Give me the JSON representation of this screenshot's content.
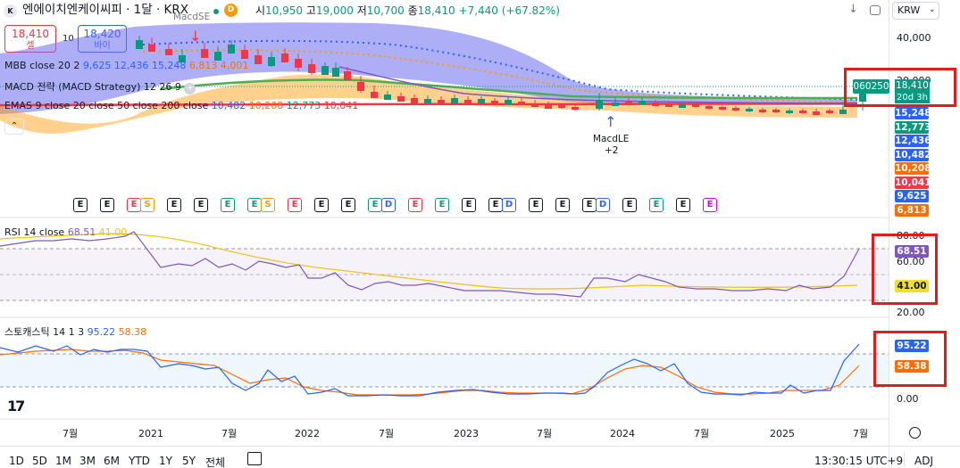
{
  "header": {
    "symbol_icon": "kr-flag-icon",
    "title": "엔에이치엔케이씨피 · 1달 · KRX",
    "open_label": "시",
    "open": "10,950",
    "high_label": "고",
    "high": "19,000",
    "low_label": "저",
    "low": "10,700",
    "close_label": "종",
    "close": "18,410",
    "change": "+7,440 (+67.82%)",
    "currency": "KRW"
  },
  "trade": {
    "sell_price": "18,410",
    "sell_label": "셀",
    "spread": "10",
    "buy_price": "18,420",
    "buy_label": "바이"
  },
  "indicators": {
    "mbb": {
      "label": "MBB close 20 2",
      "v1": "9,625",
      "v2": "12,436",
      "v3": "15,248",
      "v4": "6,813",
      "v5": "4,001"
    },
    "macd": {
      "label": "MACD 전략 (MACD Strategy) 12 26 9"
    },
    "emas": {
      "label": "EMAS 9 close 20 close 50 close 200 close",
      "v1": "10,482",
      "v2": "10,208",
      "v3": "12,773",
      "v4": "10,041"
    },
    "rsi": {
      "label": "RSI 14 close",
      "v1": "68.51",
      "v2": "41.00"
    },
    "stoch": {
      "label": "스토캐스틱 14 1 3",
      "v1": "95.22",
      "v2": "58.38"
    }
  },
  "annotations": {
    "macdshort": "MacdSE",
    "macdle": "MacdLE",
    "macdle_qty": "+2"
  },
  "price_axis": {
    "ticks": [
      "40,000",
      "20,000"
    ],
    "last_symbol": "060250",
    "last_price": "18,410",
    "countdown": "20d 3h",
    "tags": [
      {
        "value": "15,248",
        "color": "#2962ff"
      },
      {
        "value": "12,773",
        "color": "#089981"
      },
      {
        "value": "12,436",
        "color": "#2962ff"
      },
      {
        "value": "10,482",
        "color": "#2962ff"
      },
      {
        "value": "10,208",
        "color": "#ff6d00"
      },
      {
        "value": "10,041",
        "color": "#f23645"
      },
      {
        "value": "9,625",
        "color": "#2962ff"
      },
      {
        "value": "6,813",
        "color": "#ff6d00"
      }
    ]
  },
  "rsi_axis": {
    "ticks": [
      "80.00",
      "60.00",
      "20.00"
    ],
    "tag1": "68.51",
    "tag2": "41.00"
  },
  "stoch_axis": {
    "ticks": [
      "0.00"
    ],
    "tag1": "95.22",
    "tag2": "58.38"
  },
  "time_axis": {
    "labels": [
      "7월",
      "2021",
      "7월",
      "2022",
      "7월",
      "2023",
      "7월",
      "2024",
      "7월",
      "2025",
      "7월"
    ]
  },
  "bottom_bar": {
    "timeframes": [
      "1D",
      "5D",
      "1M",
      "3M",
      "6M",
      "YTD",
      "1Y",
      "5Y",
      "전체"
    ],
    "clock": "13:30:15 UTC+9",
    "adj": "ADJ"
  },
  "events": [
    {
      "t": "E",
      "k": ""
    },
    {
      "t": "E",
      "k": ""
    },
    {
      "t": "E",
      "k": "red"
    },
    {
      "t": "S",
      "k": "s"
    },
    {
      "t": "E",
      "k": ""
    },
    {
      "t": "E",
      "k": ""
    },
    {
      "t": "E",
      "k": "green"
    },
    {
      "t": "E",
      "k": "green"
    },
    {
      "t": "S",
      "k": "s"
    },
    {
      "t": "E",
      "k": "red"
    },
    {
      "t": "E",
      "k": ""
    },
    {
      "t": "E",
      "k": ""
    },
    {
      "t": "E",
      "k": "green"
    },
    {
      "t": "D",
      "k": "d"
    },
    {
      "t": "E",
      "k": "red"
    },
    {
      "t": "E",
      "k": "green"
    },
    {
      "t": "E",
      "k": ""
    },
    {
      "t": "E",
      "k": ""
    },
    {
      "t": "D",
      "k": "d"
    },
    {
      "t": "E",
      "k": ""
    },
    {
      "t": "E",
      "k": ""
    },
    {
      "t": "E",
      "k": ""
    },
    {
      "t": "D",
      "k": "d"
    },
    {
      "t": "E",
      "k": ""
    },
    {
      "t": "E",
      "k": "green"
    },
    {
      "t": "E",
      "k": ""
    },
    {
      "t": "E",
      "k": "pink"
    }
  ],
  "colors": {
    "up": "#089981",
    "down": "#f23645",
    "mbb_fill": "#6b6cf0",
    "ema_fill": "#ffb074",
    "rsi": "#7e57c2",
    "stoch_k": "#2962ff",
    "stoch_d": "#ff6d00"
  }
}
